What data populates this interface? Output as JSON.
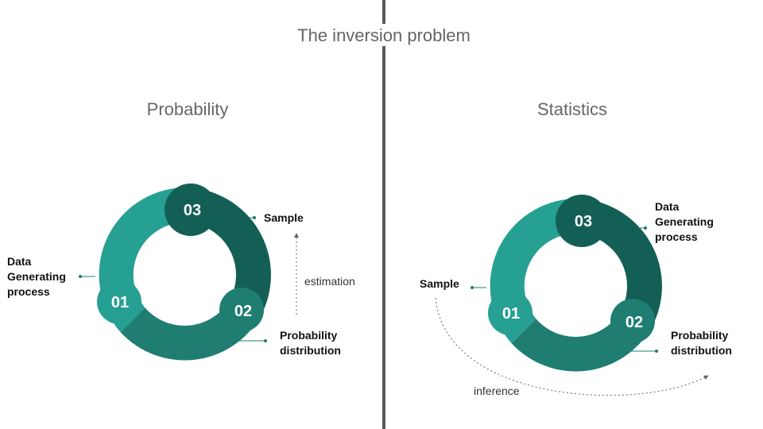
{
  "title": "The inversion problem",
  "colors": {
    "segment_01": "#26a092",
    "segment_02": "#1f7d71",
    "segment_03": "#135f56",
    "divider": "#595959",
    "connector": "#1f7d71"
  },
  "panels": {
    "probability": {
      "heading": "Probability",
      "segments": {
        "s01": "01",
        "s02": "02",
        "s03": "03"
      },
      "labels": {
        "s01": [
          "Data",
          "Generating",
          "process"
        ],
        "s02": [
          "Probability",
          "distribution"
        ],
        "s03": [
          "Sample"
        ]
      },
      "arrow_label": "estimation"
    },
    "statistics": {
      "heading": "Statistics",
      "segments": {
        "s01": "01",
        "s02": "02",
        "s03": "03"
      },
      "labels": {
        "s01": [
          "Sample"
        ],
        "s02": [
          "Probability",
          "distribution"
        ],
        "s03": [
          "Data",
          "Generating",
          "process"
        ]
      },
      "arrow_label": "inference"
    }
  }
}
